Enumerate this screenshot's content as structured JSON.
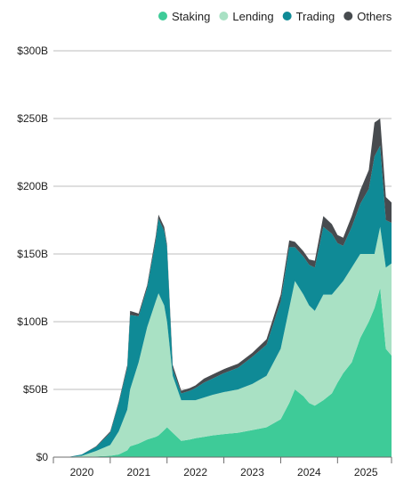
{
  "chart_data": {
    "type": "area",
    "stacked": true,
    "legend_position": "top-right",
    "grid": true,
    "ylim": [
      0,
      300
    ],
    "y_unit": "B",
    "y_ticks": [
      "$300B",
      "$250B",
      "$200B",
      "$150B",
      "$100B",
      "$50B",
      "$0"
    ],
    "y_tick_values": [
      300,
      250,
      200,
      150,
      100,
      50,
      0
    ],
    "x_ticks": [
      "2020",
      "2021",
      "2022",
      "2023",
      "2024",
      "2025"
    ],
    "x_tick_years": [
      2020,
      2021,
      2022,
      2023,
      2024,
      2025
    ],
    "x_range": [
      2020.0,
      2025.95
    ],
    "x": [
      2020.0,
      2020.25,
      2020.5,
      2020.75,
      2021.0,
      2021.15,
      2021.3,
      2021.35,
      2021.5,
      2021.65,
      2021.8,
      2021.85,
      2021.95,
      2022.0,
      2022.1,
      2022.25,
      2022.4,
      2022.5,
      2022.65,
      2022.8,
      2023.0,
      2023.25,
      2023.5,
      2023.75,
      2024.0,
      2024.15,
      2024.25,
      2024.4,
      2024.5,
      2024.6,
      2024.75,
      2024.9,
      2025.0,
      2025.1,
      2025.25,
      2025.4,
      2025.55,
      2025.65,
      2025.75,
      2025.85,
      2025.95
    ],
    "series": [
      {
        "name": "Staking",
        "color": "#3ecb98",
        "values": [
          0,
          0,
          0,
          0.5,
          1,
          2,
          5,
          8,
          10,
          13,
          15,
          16,
          20,
          22,
          18,
          12,
          13,
          14,
          15,
          16,
          17,
          18,
          20,
          22,
          28,
          40,
          50,
          45,
          40,
          38,
          42,
          47,
          55,
          62,
          70,
          88,
          100,
          110,
          125,
          80,
          75
        ]
      },
      {
        "name": "Lending",
        "color": "#a9e1c4",
        "values": [
          0,
          0,
          1,
          4,
          8,
          17,
          30,
          42,
          60,
          83,
          100,
          105,
          92,
          78,
          42,
          30,
          29,
          28,
          29,
          30,
          31,
          32,
          34,
          38,
          52,
          70,
          80,
          75,
          72,
          70,
          78,
          73,
          70,
          68,
          70,
          62,
          50,
          40,
          45,
          60,
          68
        ]
      },
      {
        "name": "Trading",
        "color": "#0f8a96",
        "values": [
          0,
          0,
          1,
          3,
          9,
          21,
          31,
          55,
          34,
          29,
          45,
          55,
          55,
          55,
          5,
          5,
          7,
          9,
          11,
          12,
          14,
          16,
          20,
          23,
          35,
          45,
          25,
          28,
          30,
          32,
          50,
          45,
          33,
          26,
          30,
          37,
          48,
          72,
          60,
          35,
          30
        ]
      },
      {
        "name": "Others",
        "color": "#474b4f",
        "values": [
          0,
          0,
          0,
          0.5,
          1,
          1,
          2,
          3,
          2,
          2,
          3,
          3,
          3,
          2,
          3,
          2,
          2,
          2,
          3,
          3,
          3,
          3,
          3,
          4,
          5,
          5,
          4,
          4,
          4,
          5,
          8,
          7,
          6,
          6,
          8,
          10,
          14,
          25,
          20,
          17,
          15
        ]
      }
    ]
  }
}
